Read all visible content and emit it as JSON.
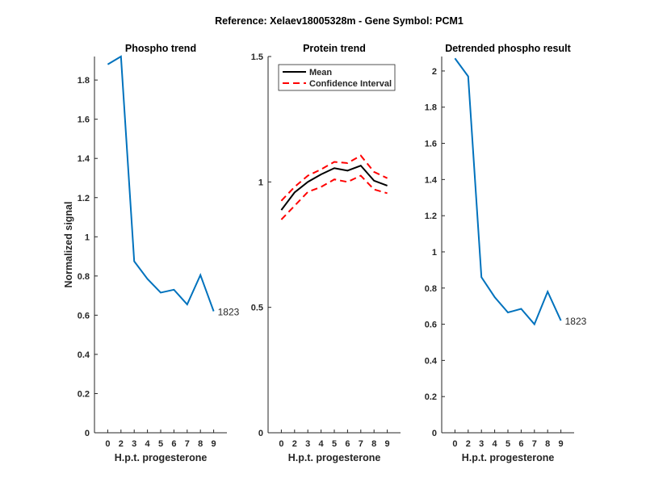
{
  "suptitle": "Reference:  Xelaev18005328m - Gene Symbol:  PCM1",
  "colors": {
    "series": "#0072BD",
    "mean": "#000000",
    "ci": "#FF0000",
    "axis": "#262626"
  },
  "chart_data": [
    {
      "type": "line",
      "title": "Phospho trend",
      "xlabel": "H.p.t. progesterone",
      "ylabel": "Normalized signal",
      "categories": [
        "0",
        "2",
        "3",
        "4",
        "5",
        "6",
        "7",
        "8",
        "9"
      ],
      "ylim": [
        0,
        1.92
      ],
      "yticks": [
        "0",
        "0.2",
        "0.4",
        "0.6",
        "0.8",
        "1",
        "1.2",
        "1.4",
        "1.6",
        "1.8"
      ],
      "series": [
        {
          "values": [
            1.88,
            1.92,
            0.875,
            0.785,
            0.715,
            0.73,
            0.655,
            0.805,
            0.62
          ],
          "end_label": "1823"
        }
      ]
    },
    {
      "type": "line",
      "title": "Protein trend",
      "xlabel": "H.p.t. progesterone",
      "ylabel": "",
      "categories": [
        "0",
        "2",
        "3",
        "4",
        "5",
        "6",
        "7",
        "8",
        "9"
      ],
      "ylim": [
        0,
        1.5
      ],
      "yticks": [
        "0",
        "0.5",
        "1",
        "1.5"
      ],
      "legend": {
        "placement": "top",
        "entries": [
          "Mean",
          "Confidence Interval"
        ]
      },
      "series": [
        {
          "name": "Mean",
          "values": [
            0.888,
            0.958,
            1.0,
            1.03,
            1.055,
            1.045,
            1.065,
            1.005,
            0.985
          ]
        },
        {
          "name": "Confidence Interval",
          "values": [
            0.925,
            0.98,
            1.025,
            1.05,
            1.08,
            1.075,
            1.105,
            1.04,
            1.015
          ]
        },
        {
          "name": "Confidence Interval",
          "values": [
            0.85,
            0.905,
            0.96,
            0.98,
            1.01,
            1.0,
            1.025,
            0.97,
            0.955
          ]
        }
      ]
    },
    {
      "type": "line",
      "title": "Detrended phospho result",
      "xlabel": "H.p.t. progesterone",
      "ylabel": "",
      "categories": [
        "0",
        "2",
        "3",
        "4",
        "5",
        "6",
        "7",
        "8",
        "9"
      ],
      "ylim": [
        0,
        2.08
      ],
      "yticks": [
        "0",
        "0.2",
        "0.4",
        "0.6",
        "0.8",
        "1",
        "1.2",
        "1.4",
        "1.6",
        "1.8",
        "2"
      ],
      "series": [
        {
          "values": [
            2.07,
            1.97,
            0.86,
            0.75,
            0.665,
            0.685,
            0.6,
            0.78,
            0.62
          ],
          "end_label": "1823"
        }
      ]
    }
  ]
}
